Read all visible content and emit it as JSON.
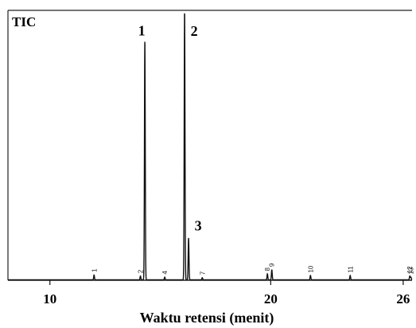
{
  "chart_data": {
    "type": "line",
    "title": "TIC",
    "xlabel": "Waktu retensi (menit)",
    "ylabel": "",
    "xlim": [
      8.1,
      26.4
    ],
    "ylim": [
      0,
      100
    ],
    "x_ticks": [
      {
        "value": 10,
        "label": "10"
      },
      {
        "value": 20,
        "label": "20"
      },
      {
        "value": 26,
        "label": "26"
      }
    ],
    "grid": false,
    "legend": "none",
    "peaks": [
      {
        "rt": 12.0,
        "height": 1.8,
        "label": "1",
        "label_size": "small"
      },
      {
        "rt": 14.1,
        "height": 1.4,
        "label": "2",
        "label_size": "small"
      },
      {
        "rt": 14.3,
        "height": 89.0,
        "label": "1",
        "label_size": "large"
      },
      {
        "rt": 15.2,
        "height": 1.0,
        "label": "4",
        "label_size": "small"
      },
      {
        "rt": 16.1,
        "height": 100.0,
        "label": "2",
        "label_size": "large"
      },
      {
        "rt": 16.28,
        "height": 15.5,
        "label": "3",
        "label_size": "large"
      },
      {
        "rt": 16.9,
        "height": 0.8,
        "label": "7",
        "label_size": "small"
      },
      {
        "rt": 19.85,
        "height": 2.2,
        "label": "8",
        "label_size": "small"
      },
      {
        "rt": 20.05,
        "height": 3.8,
        "label": "9",
        "label_size": "small"
      },
      {
        "rt": 21.8,
        "height": 1.6,
        "label": "10",
        "label_size": "small"
      },
      {
        "rt": 23.6,
        "height": 1.6,
        "label": "11",
        "label_size": "small"
      },
      {
        "rt": 26.3,
        "height": 1.4,
        "label": "12",
        "label_size": "small"
      },
      {
        "rt": 26.35,
        "height": 1.0,
        "label": "13",
        "label_size": "small"
      }
    ],
    "colors": {
      "line": "#111111",
      "frame": "#222222",
      "background": "#ffffff"
    }
  }
}
